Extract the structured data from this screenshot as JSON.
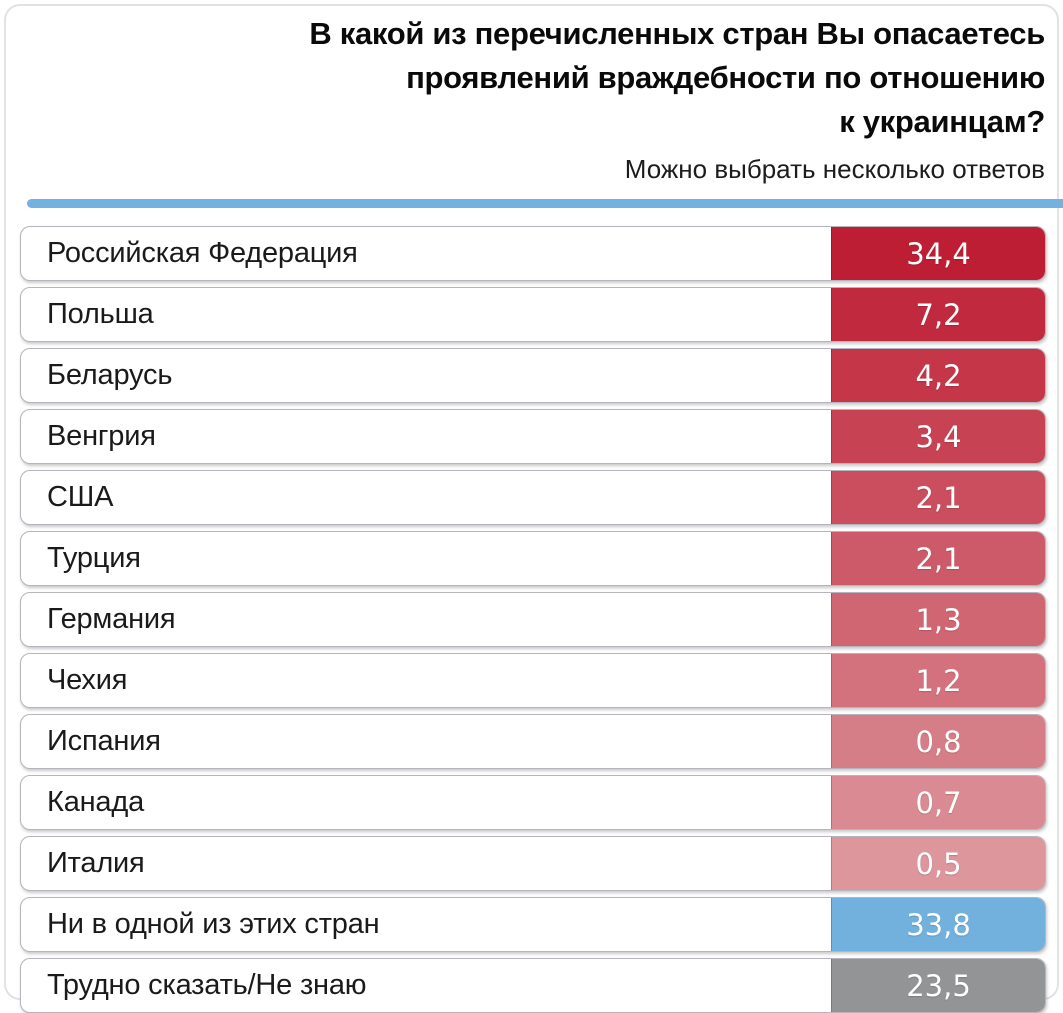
{
  "header": {
    "title_lines": [
      "В какой из перечисленных стран Вы опасаетесь",
      "проявлений враждебности по отношению",
      "к украинцам?"
    ],
    "subtitle": "Можно выбрать несколько ответов"
  },
  "colors": {
    "divider": "#74b1de",
    "row_border": "#b3b6bc",
    "page_border": "#e2e2e6",
    "label_text": "#1a1a1a",
    "value_text": "#ffffff"
  },
  "chart_data": {
    "type": "bar",
    "title": "В какой из перечисленных стран Вы опасаетесь проявлений враждебности по отношению к украинцам?",
    "subtitle": "Можно выбрать несколько ответов",
    "legend": false,
    "orientation": "horizontal-rows",
    "categories": [
      "Российская Федерация",
      "Польша",
      "Беларусь",
      "Венгрия",
      "США",
      "Турция",
      "Германия",
      "Чехия",
      "Испания",
      "Канада",
      "Италия",
      "Ни в одной из этих стран",
      "Трудно сказать/Не знаю"
    ],
    "values": [
      34.4,
      7.2,
      4.2,
      3.4,
      2.1,
      2.1,
      1.3,
      1.2,
      0.8,
      0.7,
      0.5,
      33.8,
      23.5
    ],
    "value_labels": [
      "34,4",
      "7,2",
      "4,2",
      "3,4",
      "2,1",
      "2,1",
      "1,3",
      "1,2",
      "0,8",
      "0,7",
      "0,5",
      "33,8",
      "23,5"
    ],
    "bar_colors": [
      "#be1e33",
      "#c12a3e",
      "#c43648",
      "#c74253",
      "#ca4e5d",
      "#cd5a68",
      "#d06672",
      "#d3727d",
      "#d67e87",
      "#d98a92",
      "#dc969c",
      "#72b0de",
      "#929496"
    ]
  }
}
